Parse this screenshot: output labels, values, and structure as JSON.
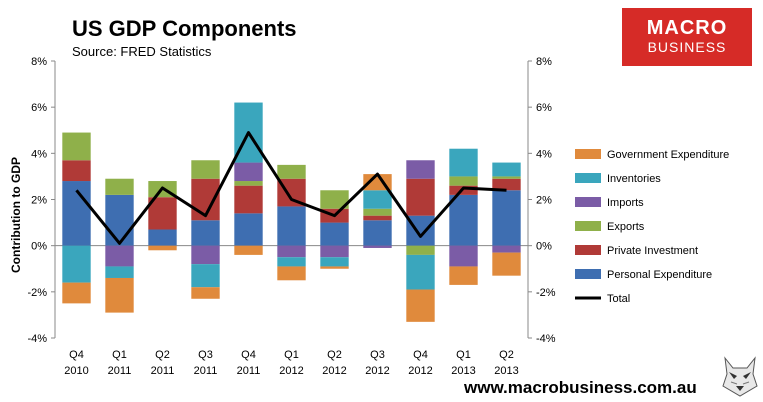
{
  "header": {
    "title": "US GDP Components",
    "subtitle": "Source: FRED Statistics"
  },
  "logo": {
    "line1": "MACRO",
    "line2": "BUSINESS"
  },
  "footer": {
    "url": "www.macrobusiness.com.au"
  },
  "colors": {
    "government": "#e08a3c",
    "inventories": "#3aa6bd",
    "imports": "#7b5ca6",
    "exports": "#8fb04a",
    "private_investment": "#b03a37",
    "personal": "#3e6eb1",
    "total": "#000000",
    "logo_bg": "#d62b27"
  },
  "chart_data": {
    "type": "bar",
    "stacked": true,
    "title": "US GDP Components",
    "subtitle": "Source: FRED Statistics",
    "ylabel": "Contribution to GDP",
    "ylim": [
      -4,
      8
    ],
    "yticks": [
      "-4%",
      "-2%",
      "0%",
      "2%",
      "4%",
      "6%",
      "8%"
    ],
    "yticks_right": [
      "-4%",
      "-2%",
      "0%",
      "2%",
      "4%",
      "6%",
      "8%"
    ],
    "categories": [
      [
        "Q4",
        "2010"
      ],
      [
        "Q1",
        "2011"
      ],
      [
        "Q2",
        "2011"
      ],
      [
        "Q3",
        "2011"
      ],
      [
        "Q4",
        "2011"
      ],
      [
        "Q1",
        "2012"
      ],
      [
        "Q2",
        "2012"
      ],
      [
        "Q3",
        "2012"
      ],
      [
        "Q4",
        "2012"
      ],
      [
        "Q1",
        "2013"
      ],
      [
        "Q2",
        "2013"
      ]
    ],
    "series": [
      {
        "name": "Personal Expenditure",
        "key": "personal",
        "values": [
          2.8,
          2.2,
          0.7,
          1.1,
          1.4,
          1.7,
          1.0,
          1.1,
          1.3,
          2.2,
          2.4
        ]
      },
      {
        "name": "Private  Investment",
        "key": "private_investment",
        "values": [
          0.9,
          0.0,
          1.4,
          1.8,
          1.2,
          1.2,
          0.6,
          0.2,
          1.6,
          0.4,
          0.5
        ]
      },
      {
        "name": "Exports",
        "key": "exports",
        "values": [
          1.2,
          0.7,
          0.7,
          0.8,
          0.2,
          0.6,
          0.8,
          0.3,
          -0.4,
          0.4,
          0.1
        ]
      },
      {
        "name": "Imports",
        "key": "imports",
        "values": [
          0.0,
          -0.9,
          0.0,
          -0.8,
          0.8,
          -0.5,
          -0.5,
          -0.1,
          0.8,
          -0.9,
          -0.3
        ]
      },
      {
        "name": "Inventories",
        "key": "inventories",
        "values": [
          -1.6,
          -0.5,
          0.0,
          -1.0,
          2.6,
          -0.4,
          -0.4,
          0.8,
          -1.5,
          1.2,
          0.6
        ]
      },
      {
        "name": "Government Expenditure",
        "key": "government",
        "values": [
          -0.9,
          -1.5,
          -0.2,
          -0.5,
          -0.4,
          -0.6,
          -0.1,
          0.7,
          -1.4,
          -0.8,
          -1.0
        ]
      }
    ],
    "line": {
      "name": "Total",
      "key": "total",
      "values": [
        2.4,
        0.1,
        2.5,
        1.3,
        4.9,
        2.0,
        1.3,
        3.1,
        0.4,
        2.5,
        2.4
      ]
    },
    "legend_position": "right",
    "legend_order": [
      "government",
      "inventories",
      "imports",
      "exports",
      "private_investment",
      "personal",
      "total"
    ],
    "grid": false
  }
}
